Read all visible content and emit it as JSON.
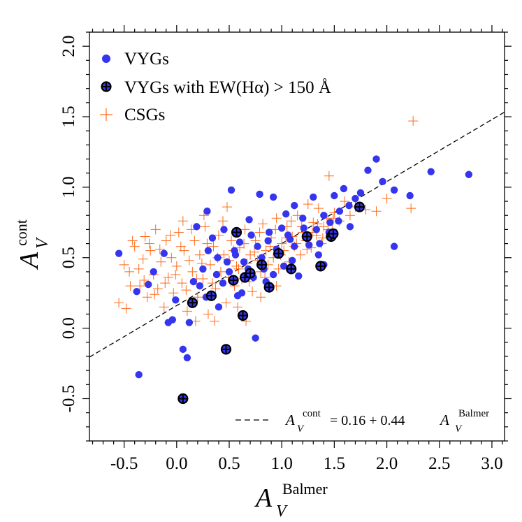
{
  "colors": {
    "vyg": "#3535f0",
    "csg": "#ff6a1a",
    "axis": "#000000",
    "fit": "#000000"
  },
  "chart_data": {
    "type": "scatter",
    "xlim": [
      -0.83,
      3.12
    ],
    "ylim": [
      -0.8,
      2.1
    ],
    "x_ticks": [
      -0.5,
      0.0,
      0.5,
      1.0,
      1.5,
      2.0,
      2.5,
      3.0
    ],
    "x_tick_labels": [
      "-0.5",
      "0.0",
      "0.5",
      "1.0",
      "1.5",
      "2.0",
      "2.5",
      "3.0"
    ],
    "y_ticks": [
      -0.5,
      0.0,
      0.5,
      1.0,
      1.5,
      2.0
    ],
    "y_tick_labels": [
      "-0.5",
      "0.0",
      "0.5",
      "1.0",
      "1.5",
      "2.0"
    ],
    "xlabel": {
      "symbol": "A",
      "sub": "V",
      "sup": "Balmer"
    },
    "ylabel": {
      "symbol": "A",
      "sub": "V",
      "sup": "cont"
    },
    "legend": {
      "position": "top-left",
      "entries": [
        {
          "label": "VYGs",
          "marker": "filled-circle"
        },
        {
          "label": "VYGs with EW(Hα) > 150 Å",
          "marker": "circled-plus"
        },
        {
          "label": "CSGs",
          "marker": "plus"
        }
      ]
    },
    "fit": {
      "intercept": 0.16,
      "slope": 0.44,
      "lhs_symbol": "A",
      "lhs_sub": "V",
      "lhs_sup": "cont",
      "equation": "= 0.16 + 0.44",
      "rhs_symbol": "A",
      "rhs_sub": "V",
      "rhs_sup": "Balmer",
      "x_range": [
        -0.83,
        3.12
      ]
    },
    "series": [
      {
        "name": "VYGs",
        "points": [
          [
            -0.55,
            0.53
          ],
          [
            -0.38,
            0.26
          ],
          [
            -0.36,
            -0.33
          ],
          [
            -0.27,
            0.31
          ],
          [
            -0.22,
            0.4
          ],
          [
            -0.12,
            0.53
          ],
          [
            -0.08,
            0.04
          ],
          [
            -0.04,
            0.06
          ],
          [
            -0.01,
            0.2
          ],
          [
            0.06,
            -0.15
          ],
          [
            0.12,
            0.04
          ],
          [
            0.1,
            -0.21
          ],
          [
            0.16,
            0.33
          ],
          [
            0.19,
            0.72
          ],
          [
            0.22,
            0.3
          ],
          [
            0.25,
            0.42
          ],
          [
            0.29,
            0.83
          ],
          [
            0.34,
            0.64
          ],
          [
            0.39,
            0.5
          ],
          [
            0.44,
            0.32
          ],
          [
            0.48,
            0.47
          ],
          [
            0.52,
            0.98
          ],
          [
            0.55,
            0.55
          ],
          [
            0.6,
            0.61
          ],
          [
            0.64,
            0.47
          ],
          [
            0.69,
            0.77
          ],
          [
            0.73,
            0.36
          ],
          [
            0.77,
            0.58
          ],
          [
            0.79,
            0.95
          ],
          [
            0.83,
            0.42
          ],
          [
            0.88,
            0.68
          ],
          [
            0.92,
            0.93
          ],
          [
            0.96,
            0.52
          ],
          [
            1.0,
            0.71
          ],
          [
            1.04,
            0.81
          ],
          [
            1.08,
            0.63
          ],
          [
            1.12,
            0.87
          ],
          [
            1.16,
            0.37
          ],
          [
            1.21,
            0.71
          ],
          [
            1.26,
            0.59
          ],
          [
            1.3,
            0.93
          ],
          [
            1.35,
            0.52
          ],
          [
            1.4,
            0.8
          ],
          [
            1.45,
            0.68
          ],
          [
            1.5,
            0.94
          ],
          [
            1.54,
            0.76
          ],
          [
            1.59,
            0.99
          ],
          [
            1.64,
            0.87
          ],
          [
            1.7,
            0.92
          ],
          [
            1.75,
            0.96
          ],
          [
            1.82,
            1.12
          ],
          [
            1.9,
            1.2
          ],
          [
            1.96,
            1.04
          ],
          [
            2.07,
            0.98
          ],
          [
            2.07,
            0.58
          ],
          [
            2.22,
            0.94
          ],
          [
            2.42,
            1.11
          ],
          [
            2.78,
            1.09
          ],
          [
            0.75,
            -0.07
          ],
          [
            0.58,
            0.23
          ],
          [
            0.68,
            0.42
          ],
          [
            0.85,
            0.33
          ],
          [
            1.1,
            0.48
          ],
          [
            1.36,
            0.6
          ],
          [
            0.4,
            0.15
          ],
          [
            0.95,
            0.56
          ],
          [
            1.2,
            0.78
          ],
          [
            0.5,
            0.4
          ],
          [
            1.65,
            0.72
          ],
          [
            1.46,
            0.75
          ],
          [
            0.3,
            0.55
          ],
          [
            1.02,
            0.44
          ],
          [
            0.62,
            0.25
          ],
          [
            0.87,
            0.62
          ],
          [
            0.71,
            0.66
          ],
          [
            1.33,
            0.7
          ],
          [
            0.45,
            0.7
          ],
          [
            0.81,
            0.5
          ],
          [
            1.12,
            0.58
          ],
          [
            0.56,
            0.52
          ],
          [
            1.55,
            0.83
          ],
          [
            0.38,
            0.38
          ],
          [
            0.28,
            0.22
          ],
          [
            0.92,
            0.38
          ],
          [
            1.4,
            0.45
          ],
          [
            1.06,
            0.66
          ]
        ]
      },
      {
        "name": "VYGs with EW(Hα) > 150 Å",
        "points": [
          [
            0.06,
            -0.5
          ],
          [
            0.15,
            0.18
          ],
          [
            0.33,
            0.23
          ],
          [
            0.47,
            -0.15
          ],
          [
            0.54,
            0.34
          ],
          [
            0.57,
            0.68
          ],
          [
            0.63,
            0.09
          ],
          [
            0.65,
            0.36
          ],
          [
            0.7,
            0.39
          ],
          [
            0.81,
            0.45
          ],
          [
            0.88,
            0.29
          ],
          [
            0.97,
            0.53
          ],
          [
            1.09,
            0.42
          ],
          [
            1.24,
            0.65
          ],
          [
            1.37,
            0.44
          ],
          [
            1.47,
            0.65
          ],
          [
            1.49,
            0.67
          ],
          [
            1.74,
            0.86
          ]
        ]
      },
      {
        "name": "CSGs",
        "points": [
          [
            -0.55,
            0.18
          ],
          [
            -0.5,
            0.45
          ],
          [
            -0.45,
            0.4
          ],
          [
            -0.4,
            0.58
          ],
          [
            -0.35,
            0.3
          ],
          [
            -0.32,
            0.49
          ],
          [
            -0.3,
            0.65
          ],
          [
            -0.28,
            0.22
          ],
          [
            -0.25,
            0.55
          ],
          [
            -0.22,
            0.38
          ],
          [
            -0.2,
            0.7
          ],
          [
            -0.18,
            0.28
          ],
          [
            -0.15,
            0.47
          ],
          [
            -0.12,
            0.15
          ],
          [
            -0.1,
            0.62
          ],
          [
            -0.08,
            0.36
          ],
          [
            -0.05,
            0.5
          ],
          [
            -0.03,
            0.25
          ],
          [
            0.0,
            0.44
          ],
          [
            0.02,
            0.68
          ],
          [
            0.05,
            0.32
          ],
          [
            0.07,
            0.55
          ],
          [
            0.1,
            0.12
          ],
          [
            0.12,
            0.48
          ],
          [
            0.15,
            0.4
          ],
          [
            0.17,
            0.62
          ],
          [
            0.2,
            0.22
          ],
          [
            0.22,
            0.52
          ],
          [
            0.25,
            0.35
          ],
          [
            0.27,
            0.72
          ],
          [
            0.3,
            0.1
          ],
          [
            0.32,
            0.45
          ],
          [
            0.35,
            0.58
          ],
          [
            0.37,
            0.28
          ],
          [
            0.4,
            0.66
          ],
          [
            0.42,
            0.4
          ],
          [
            0.45,
            0.52
          ],
          [
            0.47,
            0.18
          ],
          [
            0.5,
            0.48
          ],
          [
            0.52,
            0.62
          ],
          [
            0.55,
            0.3
          ],
          [
            0.57,
            0.44
          ],
          [
            0.6,
            0.57
          ],
          [
            0.62,
            0.35
          ],
          [
            0.65,
            0.7
          ],
          [
            0.67,
            0.46
          ],
          [
            0.7,
            0.52
          ],
          [
            0.72,
            0.26
          ],
          [
            0.75,
            0.62
          ],
          [
            0.77,
            0.48
          ],
          [
            0.8,
            0.4
          ],
          [
            0.82,
            0.74
          ],
          [
            0.85,
            0.55
          ],
          [
            0.87,
            0.45
          ],
          [
            0.9,
            0.64
          ],
          [
            0.92,
            0.5
          ],
          [
            0.95,
            0.78
          ],
          [
            0.97,
            0.42
          ],
          [
            1.0,
            0.6
          ],
          [
            1.02,
            0.55
          ],
          [
            1.05,
            0.72
          ],
          [
            1.07,
            0.47
          ],
          [
            1.1,
            0.65
          ],
          [
            1.12,
            0.58
          ],
          [
            1.15,
            0.8
          ],
          [
            1.18,
            0.52
          ],
          [
            1.2,
            0.68
          ],
          [
            1.23,
            0.62
          ],
          [
            1.25,
            0.88
          ],
          [
            1.28,
            0.57
          ],
          [
            1.3,
            0.75
          ],
          [
            1.33,
            0.66
          ],
          [
            1.35,
            0.85
          ],
          [
            1.38,
            0.6
          ],
          [
            1.4,
            0.72
          ],
          [
            1.43,
            0.78
          ],
          [
            1.45,
            1.08
          ],
          [
            1.48,
            0.7
          ],
          [
            1.5,
            0.82
          ],
          [
            1.55,
            0.76
          ],
          [
            1.6,
            0.9
          ],
          [
            1.65,
            0.8
          ],
          [
            1.7,
            0.86
          ],
          [
            1.8,
            0.84
          ],
          [
            1.9,
            0.83
          ],
          [
            2.0,
            0.92
          ],
          [
            2.23,
            0.85
          ],
          [
            2.25,
            1.47
          ],
          [
            -0.48,
            0.14
          ],
          [
            -0.42,
            0.62
          ],
          [
            -0.36,
            0.42
          ],
          [
            -0.31,
            0.34
          ],
          [
            -0.26,
            0.6
          ],
          [
            -0.21,
            0.24
          ],
          [
            -0.16,
            0.56
          ],
          [
            -0.11,
            0.32
          ],
          [
            -0.06,
            0.66
          ],
          [
            -0.01,
            0.38
          ],
          [
            0.04,
            0.58
          ],
          [
            0.09,
            0.27
          ],
          [
            0.14,
            0.7
          ],
          [
            0.19,
            0.35
          ],
          [
            0.24,
            0.46
          ],
          [
            0.29,
            0.6
          ],
          [
            0.34,
            0.32
          ],
          [
            0.39,
            0.5
          ],
          [
            0.44,
            0.76
          ],
          [
            0.49,
            0.36
          ],
          [
            0.54,
            0.55
          ],
          [
            0.59,
            0.42
          ],
          [
            0.64,
            0.6
          ],
          [
            0.69,
            0.33
          ],
          [
            0.74,
            0.54
          ],
          [
            0.79,
            0.68
          ],
          [
            0.84,
            0.36
          ],
          [
            0.89,
            0.58
          ],
          [
            0.94,
            0.7
          ],
          [
            0.99,
            0.52
          ],
          [
            1.04,
            0.64
          ],
          [
            1.09,
            0.76
          ],
          [
            1.14,
            0.6
          ],
          [
            1.19,
            0.72
          ],
          [
            1.24,
            0.56
          ],
          [
            1.29,
            0.68
          ],
          [
            1.34,
            0.74
          ],
          [
            1.39,
            0.64
          ],
          [
            1.44,
            0.7
          ],
          [
            1.49,
            0.78
          ],
          [
            0.36,
            0.05
          ],
          [
            0.58,
            0.15
          ],
          [
            0.8,
            0.22
          ],
          [
            0.18,
            0.05
          ],
          [
            0.66,
            0.05
          ],
          [
            0.95,
            0.3
          ],
          [
            0.26,
            0.8
          ],
          [
            0.48,
            0.86
          ],
          [
            -0.44,
            0.3
          ],
          [
            0.06,
            0.76
          ]
        ]
      }
    ]
  }
}
